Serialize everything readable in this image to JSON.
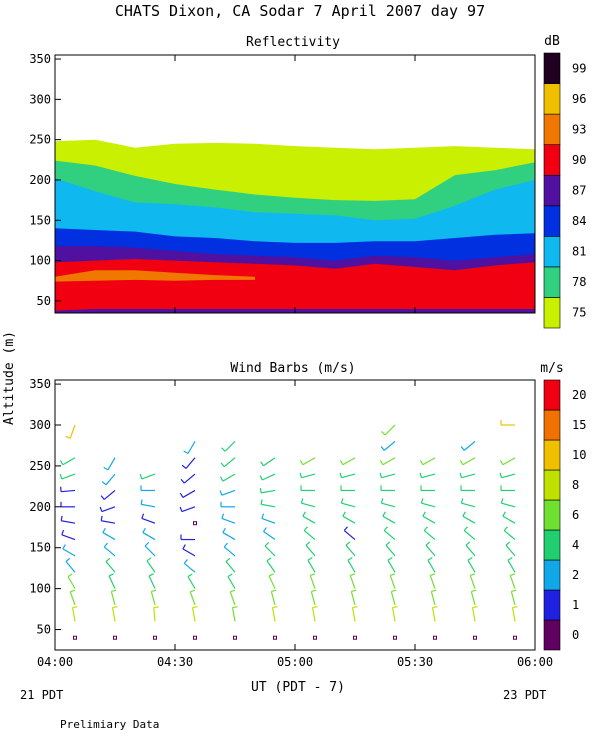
{
  "title": "CHATS Dixon, CA  Sodar    7 April 2007   day  97",
  "footer_note": "Prelimiary Data",
  "y_axis_label": "Altitude (m)",
  "x_axis_label": "UT  (PDT - 7)",
  "date_left": "21 PDT",
  "date_right": "23 PDT",
  "chart_data": [
    {
      "type": "heatmap",
      "title": "Reflectivity",
      "ylabel": "Altitude (m)",
      "ylim": [
        35,
        355
      ],
      "y_ticks": [
        50,
        100,
        150,
        200,
        250,
        300,
        350
      ],
      "xlim": [
        "04:00",
        "06:00"
      ],
      "x_ticks": [
        "04:00",
        "04:30",
        "05:00",
        "05:30",
        "06:00"
      ],
      "x_tick_labels_shown": false,
      "colorbar": {
        "unit": "dB",
        "levels": [
          75,
          78,
          81,
          84,
          87,
          90,
          93,
          96,
          99
        ],
        "colors": [
          "#c8f000",
          "#30d080",
          "#10b8f0",
          "#0030e0",
          "#5010a0",
          "#f00010",
          "#f07800",
          "#f0c000",
          "#200020"
        ]
      },
      "layers": [
        {
          "level": 75,
          "band": [
            [
              35,
              248
            ],
            [
              35,
              250
            ],
            [
              35,
              240
            ],
            [
              35,
              245
            ],
            [
              35,
              246
            ],
            [
              35,
              245
            ],
            [
              35,
              242
            ],
            [
              35,
              240
            ],
            [
              35,
              238
            ],
            [
              35,
              240
            ],
            [
              35,
              242
            ],
            [
              35,
              240
            ],
            [
              35,
              238
            ]
          ]
        },
        {
          "level": 78,
          "band": [
            [
              35,
              224
            ],
            [
              35,
              218
            ],
            [
              35,
              205
            ],
            [
              35,
              195
            ],
            [
              35,
              188
            ],
            [
              35,
              182
            ],
            [
              35,
              178
            ],
            [
              35,
              175
            ],
            [
              35,
              174
            ],
            [
              35,
              176
            ],
            [
              35,
              206
            ],
            [
              35,
              212
            ],
            [
              35,
              222
            ]
          ]
        },
        {
          "level": 81,
          "band": [
            [
              35,
              202
            ],
            [
              35,
              186
            ],
            [
              35,
              172
            ],
            [
              35,
              170
            ],
            [
              35,
              166
            ],
            [
              35,
              160
            ],
            [
              35,
              158
            ],
            [
              35,
              156
            ],
            [
              35,
              150
            ],
            [
              35,
              152
            ],
            [
              35,
              168
            ],
            [
              35,
              188
            ],
            [
              35,
              200
            ]
          ]
        },
        {
          "level": 84,
          "band": [
            [
              35,
              140
            ],
            [
              35,
              138
            ],
            [
              35,
              136
            ],
            [
              35,
              130
            ],
            [
              35,
              128
            ],
            [
              35,
              124
            ],
            [
              35,
              122
            ],
            [
              35,
              122
            ],
            [
              35,
              124
            ],
            [
              35,
              124
            ],
            [
              35,
              128
            ],
            [
              35,
              132
            ],
            [
              35,
              134
            ]
          ]
        },
        {
          "level": 87,
          "band": [
            [
              35,
              118
            ],
            [
              35,
              118
            ],
            [
              35,
              116
            ],
            [
              35,
              112
            ],
            [
              35,
              108
            ],
            [
              35,
              106
            ],
            [
              35,
              104
            ],
            [
              35,
              100
            ],
            [
              35,
              106
            ],
            [
              35,
              104
            ],
            [
              35,
              100
            ],
            [
              35,
              104
            ],
            [
              35,
              108
            ]
          ]
        },
        {
          "level": 90,
          "band": [
            [
              38,
              98
            ],
            [
              40,
              100
            ],
            [
              40,
              102
            ],
            [
              40,
              100
            ],
            [
              40,
              98
            ],
            [
              40,
              96
            ],
            [
              40,
              94
            ],
            [
              40,
              90
            ],
            [
              40,
              96
            ],
            [
              40,
              92
            ],
            [
              40,
              88
            ],
            [
              40,
              94
            ],
            [
              40,
              98
            ]
          ]
        },
        {
          "level": 93,
          "band": [
            [
              74,
              80
            ],
            [
              75,
              88
            ],
            [
              76,
              88
            ],
            [
              75,
              85
            ],
            [
              76,
              82
            ],
            [
              76,
              80
            ],
            [
              0,
              0
            ],
            [
              0,
              0
            ],
            [
              0,
              0
            ],
            [
              0,
              0
            ],
            [
              0,
              0
            ],
            [
              0,
              0
            ],
            [
              0,
              0
            ]
          ]
        }
      ]
    },
    {
      "type": "scatter",
      "title": "Wind Barbs (m/s)",
      "ylabel": "Altitude (m)",
      "ylim": [
        25,
        355
      ],
      "y_ticks": [
        50,
        100,
        150,
        200,
        250,
        300,
        350
      ],
      "xlim": [
        "04:00",
        "06:00"
      ],
      "x_ticks": [
        "04:00",
        "04:30",
        "05:00",
        "05:30",
        "06:00"
      ],
      "colorbar": {
        "unit": "m/s",
        "levels": [
          0,
          1,
          2,
          4,
          6,
          8,
          10,
          15,
          20
        ],
        "colors": [
          "#600060",
          "#2020e0",
          "#10a8e8",
          "#20d070",
          "#70e030",
          "#c0e000",
          "#f0c000",
          "#f07000",
          "#f00010"
        ]
      },
      "profile_times": [
        "04:05",
        "04:15",
        "04:25",
        "04:35",
        "04:45",
        "04:55",
        "05:05",
        "05:15",
        "05:25",
        "05:35",
        "05:45",
        "05:55"
      ],
      "altitudes": [
        40,
        60,
        80,
        100,
        120,
        140,
        160,
        180,
        200,
        220,
        240,
        260,
        280,
        300
      ],
      "profiles": [
        {
          "time": "04:05",
          "speed": [
            0.5,
            8,
            7,
            6,
            3,
            2,
            1.5,
            1.5,
            1,
            1,
            4,
            5,
            null,
            12
          ],
          "dir": [
            10,
            350,
            340,
            330,
            320,
            300,
            290,
            280,
            270,
            265,
            250,
            240,
            null,
            200
          ]
        },
        {
          "time": "04:15",
          "speed": [
            0.5,
            8,
            7,
            5,
            4,
            3,
            2,
            1,
            1,
            1.5,
            2,
            3,
            null,
            null
          ],
          "dir": [
            0,
            350,
            345,
            335,
            320,
            310,
            300,
            280,
            250,
            230,
            220,
            210,
            null,
            null
          ]
        },
        {
          "time": "04:25",
          "speed": [
            0.5,
            8,
            7,
            5,
            4,
            3,
            2,
            1.5,
            3,
            3,
            5,
            null,
            null,
            null
          ],
          "dir": [
            0,
            355,
            345,
            335,
            325,
            315,
            300,
            290,
            280,
            270,
            250,
            null,
            null,
            null
          ]
        },
        {
          "time": "04:35",
          "speed": [
            0.5,
            8,
            6,
            5,
            2,
            1,
            1,
            0.5,
            1,
            1,
            1,
            1.5,
            3,
            null
          ],
          "dir": [
            0,
            350,
            340,
            330,
            310,
            300,
            270,
            260,
            250,
            240,
            230,
            220,
            210,
            null
          ]
        },
        {
          "time": "04:45",
          "speed": [
            0.5,
            7,
            6,
            5,
            4,
            3,
            2,
            3,
            3,
            3,
            4,
            5,
            5,
            null
          ],
          "dir": [
            0,
            350,
            340,
            330,
            320,
            310,
            300,
            290,
            270,
            250,
            240,
            230,
            225,
            null
          ]
        },
        {
          "time": "04:55",
          "speed": [
            0.5,
            8,
            7,
            6,
            5,
            4,
            3,
            3,
            4,
            4,
            4,
            4,
            null,
            null
          ],
          "dir": [
            0,
            350,
            345,
            335,
            325,
            315,
            305,
            290,
            280,
            260,
            245,
            235,
            null,
            null
          ]
        },
        {
          "time": "05:05",
          "speed": [
            0.5,
            8,
            7,
            6,
            5,
            4,
            4,
            4,
            4,
            5,
            5,
            6,
            null,
            null
          ],
          "dir": [
            0,
            350,
            345,
            340,
            330,
            320,
            310,
            300,
            285,
            270,
            255,
            240,
            null,
            null
          ]
        },
        {
          "time": "05:15",
          "speed": [
            0.5,
            8,
            7,
            6,
            5,
            4,
            1,
            4,
            4,
            5,
            5,
            6,
            null,
            null
          ],
          "dir": [
            0,
            350,
            345,
            340,
            330,
            320,
            310,
            300,
            285,
            270,
            255,
            240,
            null,
            null
          ]
        },
        {
          "time": "05:25",
          "speed": [
            0.5,
            8,
            7,
            6,
            5,
            4,
            4,
            4,
            4,
            5,
            5,
            6,
            2,
            6
          ],
          "dir": [
            0,
            350,
            345,
            340,
            330,
            320,
            310,
            300,
            285,
            270,
            255,
            240,
            230,
            225
          ]
        },
        {
          "time": "05:35",
          "speed": [
            0.5,
            8,
            7,
            6,
            5,
            4,
            4,
            4,
            4,
            5,
            5,
            6,
            null,
            null
          ],
          "dir": [
            0,
            350,
            345,
            340,
            330,
            320,
            310,
            300,
            285,
            270,
            255,
            240,
            null,
            null
          ]
        },
        {
          "time": "05:45",
          "speed": [
            0.5,
            8,
            7,
            6,
            5,
            4,
            4,
            4,
            4,
            5,
            5,
            6,
            3,
            null
          ],
          "dir": [
            0,
            350,
            345,
            340,
            330,
            320,
            310,
            300,
            285,
            270,
            255,
            240,
            230,
            null
          ]
        },
        {
          "time": "05:55",
          "speed": [
            0.5,
            8,
            7,
            6,
            5,
            4,
            4,
            4,
            4,
            5,
            5,
            6,
            null,
            14
          ],
          "dir": [
            0,
            350,
            345,
            340,
            330,
            320,
            310,
            300,
            285,
            270,
            255,
            240,
            null,
            270
          ]
        }
      ]
    }
  ]
}
